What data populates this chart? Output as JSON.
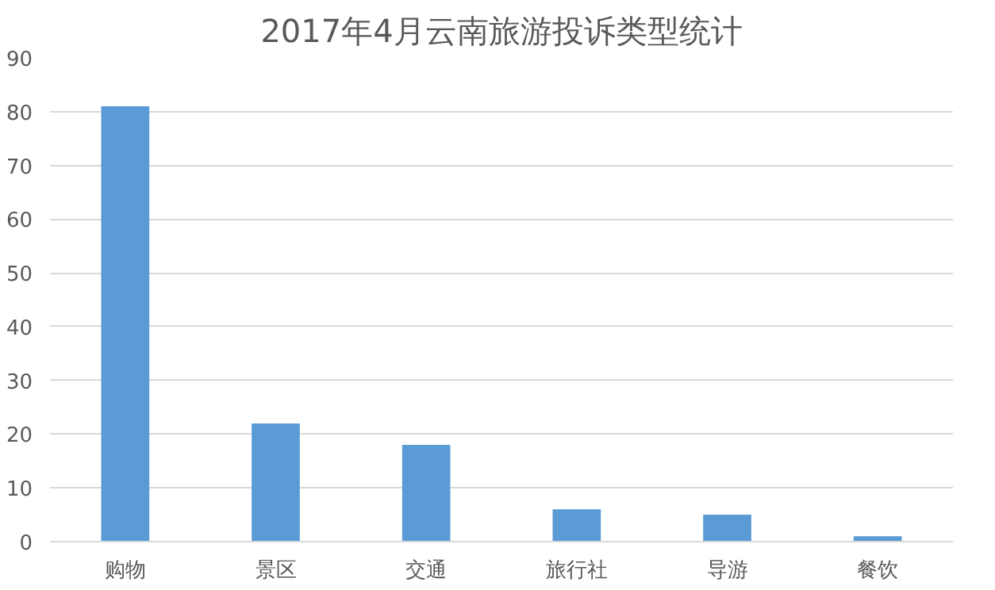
{
  "chart_data": {
    "type": "bar",
    "title": "2017年4月云南旅游投诉类型统计",
    "categories": [
      "购物",
      "景区",
      "交通",
      "旅行社",
      "导游",
      "餐饮"
    ],
    "values": [
      81,
      22,
      18,
      6,
      5,
      1
    ],
    "color": "#5b9bd5",
    "ylim": [
      0,
      90
    ],
    "yticks": [
      0,
      10,
      20,
      30,
      40,
      50,
      60,
      70,
      80,
      90
    ],
    "grid": "y"
  }
}
